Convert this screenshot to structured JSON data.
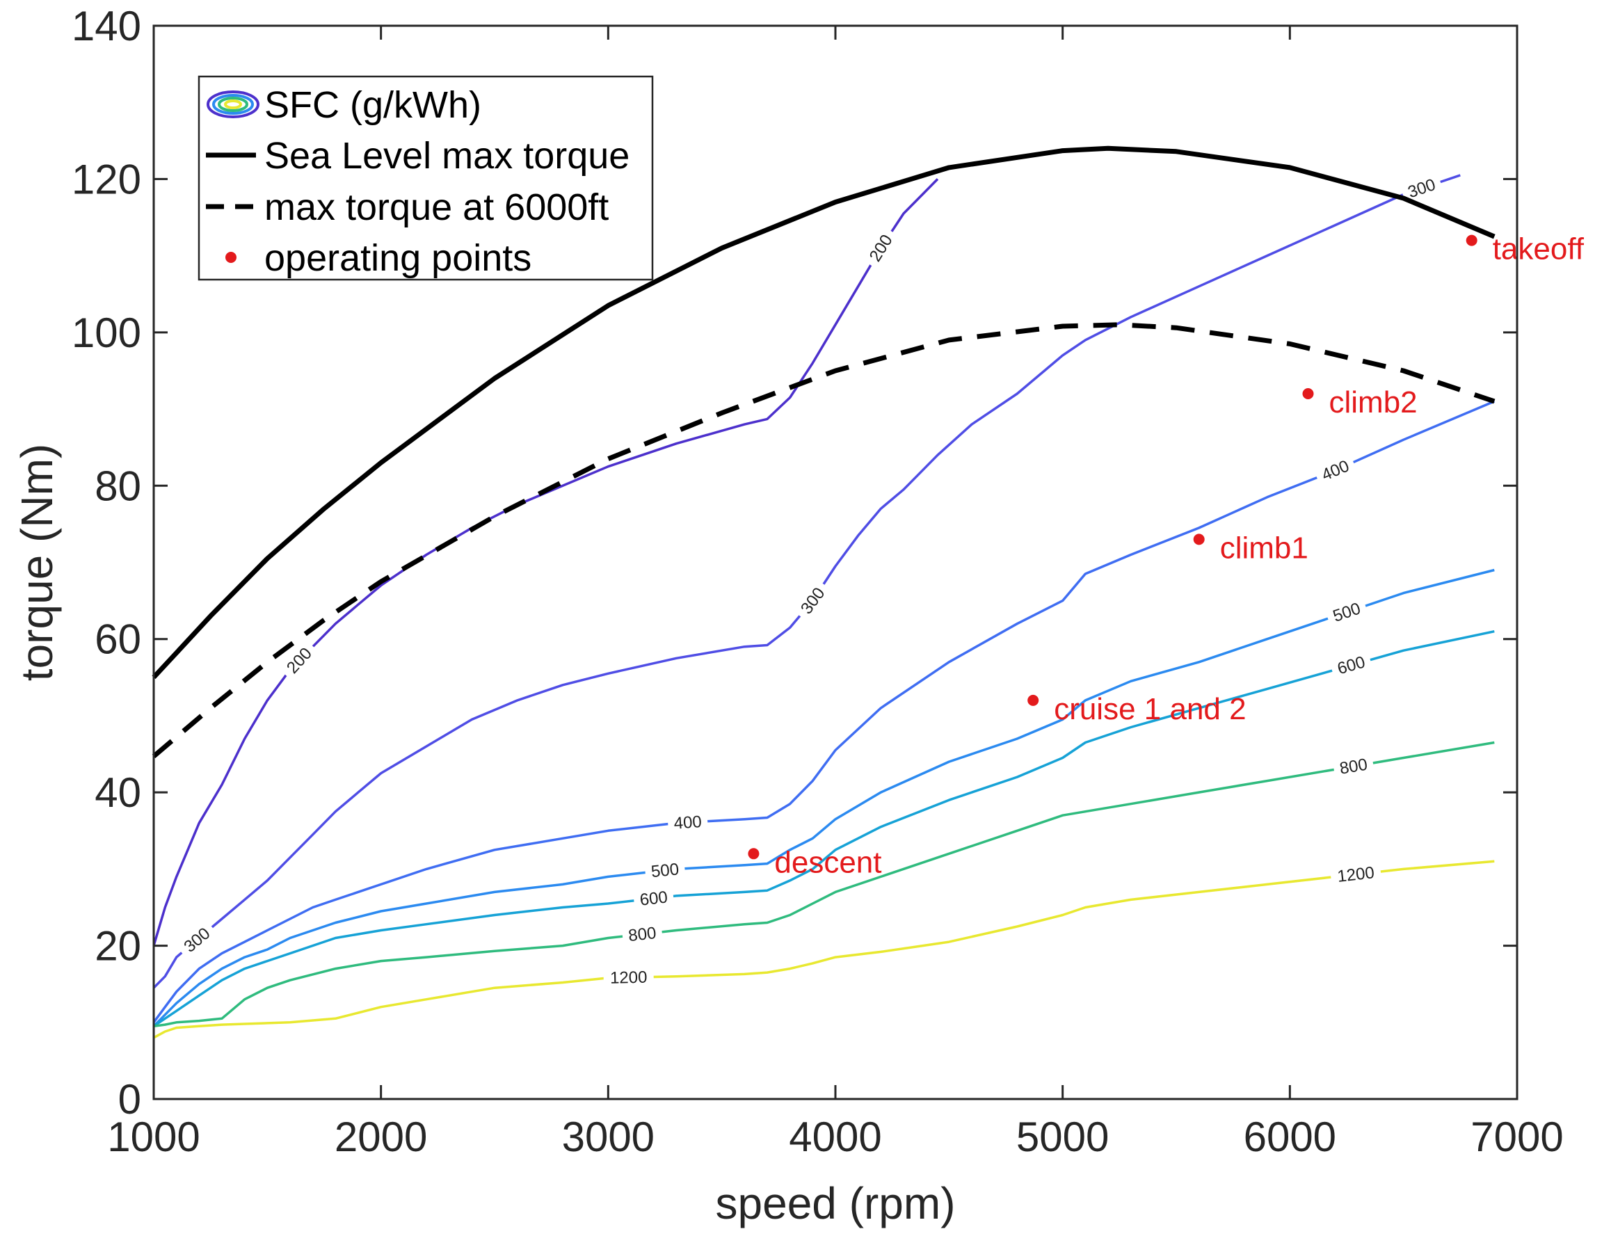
{
  "chart_data": {
    "type": "line",
    "xlabel": "speed (rpm)",
    "ylabel": "torque (Nm)",
    "xlim": [
      1000,
      7000
    ],
    "ylim": [
      0,
      140
    ],
    "xticks": [
      1000,
      2000,
      3000,
      4000,
      5000,
      6000,
      7000
    ],
    "yticks": [
      0,
      20,
      40,
      60,
      80,
      100,
      120,
      140
    ],
    "grid": false,
    "legend": {
      "placement": "top-left",
      "entries": [
        {
          "label": "SFC (g/kWh)",
          "kind": "contour"
        },
        {
          "label": "Sea Level max torque",
          "kind": "solid"
        },
        {
          "label": "max torque at 6000ft",
          "kind": "dashed"
        },
        {
          "label": "operating points",
          "kind": "point"
        }
      ]
    },
    "series": [
      {
        "name": "Sea Level max torque",
        "style": "solid",
        "color": "#000000",
        "x": [
          1000,
          1250,
          1500,
          1750,
          2000,
          2500,
          3000,
          3500,
          4000,
          4500,
          5000,
          5200,
          5500,
          6000,
          6500,
          6900
        ],
        "y": [
          55,
          63,
          70.5,
          77,
          83,
          94,
          103.5,
          111,
          117,
          121.5,
          123.7,
          124,
          123.6,
          121.5,
          117.5,
          112.5
        ]
      },
      {
        "name": "max torque at 6000ft",
        "style": "dashed",
        "color": "#000000",
        "x": [
          1000,
          1250,
          1500,
          1750,
          2000,
          2500,
          3000,
          3500,
          4000,
          4500,
          5000,
          5250,
          5500,
          6000,
          6500,
          6900
        ],
        "y": [
          44.7,
          51,
          57,
          62.5,
          67.5,
          76,
          83.5,
          89.5,
          95,
          99,
          100.8,
          101,
          100.6,
          98.5,
          95,
          91
        ]
      }
    ],
    "contours": [
      {
        "level": "200",
        "color": "#4c30cc",
        "x": [
          1000,
          1050,
          1100,
          1200,
          1300,
          1400,
          1500,
          1600,
          1700,
          1800,
          1900,
          2000,
          2200,
          2400,
          2600,
          2800,
          3000,
          3300,
          3600,
          3700,
          3800,
          3900,
          4000,
          4100,
          4200,
          4300,
          4450
        ],
        "y": [
          20,
          25,
          29,
          36,
          41,
          47,
          52,
          56,
          59,
          62,
          64.5,
          67,
          71,
          74.5,
          77.5,
          80,
          82.5,
          85.5,
          88,
          88.7,
          91.5,
          96,
          101,
          106,
          111,
          115.5,
          120
        ],
        "labels": [
          {
            "x": 1640,
            "y": 58.5
          },
          {
            "x": 4200,
            "y": 110.5
          }
        ]
      },
      {
        "level": "300",
        "color": "#4f4de5",
        "x": [
          1000,
          1050,
          1100,
          1200,
          1300,
          1400,
          1500,
          1600,
          1700,
          1800,
          1900,
          2000,
          2200,
          2400,
          2600,
          2800,
          3000,
          3300,
          3600,
          3700,
          3800,
          3900,
          4000,
          4100,
          4200,
          4300,
          4450,
          4600,
          4800,
          5000,
          5100,
          5300,
          5600,
          5900,
          6200,
          6500,
          6750
        ],
        "y": [
          14.5,
          16,
          18.5,
          21,
          23.5,
          26,
          28.5,
          31.5,
          34.5,
          37.5,
          40,
          42.5,
          46,
          49.5,
          52,
          54,
          55.5,
          57.5,
          59,
          59.2,
          61.5,
          65,
          69.5,
          73.5,
          77,
          79.5,
          84,
          88,
          92,
          97,
          99,
          102,
          106,
          110,
          114,
          118,
          120.5
        ],
        "labels": [
          {
            "x": 1190,
            "y": 22
          },
          {
            "x": 3900,
            "y": 65
          },
          {
            "x": 6580,
            "y": 118.5
          }
        ]
      },
      {
        "level": "400",
        "color": "#3f6df2",
        "x": [
          1000,
          1050,
          1100,
          1200,
          1300,
          1400,
          1500,
          1600,
          1700,
          1800,
          2000,
          2200,
          2500,
          2800,
          3000,
          3300,
          3600,
          3700,
          3800,
          3900,
          4000,
          4200,
          4500,
          4800,
          5000,
          5100,
          5300,
          5600,
          5900,
          6200,
          6500,
          6900
        ],
        "y": [
          10,
          12,
          14,
          17,
          19,
          20.5,
          22,
          23.5,
          25,
          26,
          28,
          30,
          32.5,
          34,
          35,
          36,
          36.5,
          36.7,
          38.5,
          41.5,
          45.5,
          51,
          57,
          62,
          65,
          68.5,
          71,
          74.5,
          78.5,
          82,
          86,
          91
        ],
        "labels": [
          {
            "x": 3350,
            "y": 43
          },
          {
            "x": 6200,
            "y": 85
          }
        ]
      },
      {
        "level": "500",
        "color": "#2b8af0",
        "x": [
          1000,
          1050,
          1100,
          1200,
          1300,
          1400,
          1500,
          1600,
          1800,
          2000,
          2200,
          2500,
          2800,
          3000,
          3300,
          3600,
          3700,
          3800,
          3900,
          4000,
          4200,
          4500,
          4800,
          5000,
          5100,
          5300,
          5600,
          5900,
          6200,
          6500,
          6900
        ],
        "y": [
          9.5,
          11,
          12.5,
          15,
          17,
          18.5,
          19.5,
          21,
          23,
          24.5,
          25.5,
          27,
          28,
          29,
          30,
          30.5,
          30.7,
          32.5,
          34,
          36.5,
          40,
          44,
          47,
          49.5,
          52,
          54.5,
          57,
          60,
          63,
          66,
          69
        ],
        "labels": [
          {
            "x": 3250,
            "y": 34
          },
          {
            "x": 6250,
            "y": 68
          }
        ]
      },
      {
        "level": "600",
        "color": "#16a2d6",
        "x": [
          1000,
          1050,
          1100,
          1200,
          1300,
          1400,
          1500,
          1600,
          1800,
          2000,
          2200,
          2500,
          2800,
          3000,
          3300,
          3600,
          3700,
          3800,
          3900,
          4000,
          4200,
          4500,
          4800,
          5000,
          5100,
          5300,
          5600,
          5900,
          6200,
          6500,
          6900
        ],
        "y": [
          9.5,
          10.5,
          11.5,
          13.5,
          15.5,
          17,
          18,
          19,
          21,
          22,
          22.8,
          24,
          25,
          25.5,
          26.5,
          27,
          27.2,
          28.5,
          30,
          32.5,
          35.5,
          39,
          42,
          44.5,
          46.5,
          48.5,
          51,
          53.5,
          56,
          58.5,
          61
        ],
        "labels": [
          {
            "x": 3200,
            "y": 28.6
          },
          {
            "x": 6270,
            "y": 57
          }
        ]
      },
      {
        "level": "800",
        "color": "#2fbb7e",
        "x": [
          1000,
          1050,
          1100,
          1200,
          1300,
          1400,
          1500,
          1600,
          1800,
          2000,
          2200,
          2500,
          2800,
          3000,
          3300,
          3600,
          3700,
          3800,
          3900,
          4000,
          4200,
          4500,
          4800,
          5000,
          5100,
          5300,
          5600,
          5900,
          6200,
          6500,
          6900
        ],
        "y": [
          9.5,
          9.7,
          10,
          10.2,
          10.5,
          13,
          14.5,
          15.5,
          17,
          18,
          18.5,
          19.3,
          20,
          21,
          22,
          22.8,
          23,
          24,
          25.5,
          27,
          29,
          32,
          35,
          37,
          37.5,
          38.5,
          40,
          41.5,
          43,
          44.5,
          46.5
        ],
        "labels": [
          {
            "x": 3150,
            "y": 21.5
          },
          {
            "x": 6280,
            "y": 43.5
          }
        ]
      },
      {
        "level": "1200",
        "color": "#e8e830",
        "x": [
          1000,
          1050,
          1100,
          1200,
          1300,
          1400,
          1500,
          1600,
          1800,
          2000,
          2200,
          2500,
          2800,
          3000,
          3300,
          3600,
          3700,
          3800,
          3900,
          4000,
          4200,
          4500,
          4800,
          5000,
          5100,
          5300,
          5600,
          5900,
          6200,
          6500,
          6900
        ],
        "y": [
          8,
          8.8,
          9.3,
          9.5,
          9.7,
          9.8,
          9.9,
          10,
          10.5,
          12,
          13,
          14.5,
          15.2,
          15.8,
          16,
          16.3,
          16.5,
          17,
          17.7,
          18.5,
          19.2,
          20.5,
          22.5,
          24,
          25,
          26,
          27,
          28,
          29,
          30,
          31
        ],
        "labels": [
          {
            "x": 3090,
            "y": 15.8
          },
          {
            "x": 6290,
            "y": 29.4
          }
        ]
      }
    ],
    "points": [
      {
        "label": "takeoff",
        "x": 6800,
        "y": 112
      },
      {
        "label": "climb2",
        "x": 6080,
        "y": 92
      },
      {
        "label": "climb1",
        "x": 5600,
        "y": 73
      },
      {
        "label": "cruise 1 and 2",
        "x": 4870,
        "y": 52
      },
      {
        "label": "descent",
        "x": 3640,
        "y": 32
      }
    ],
    "point_color": "#e31a1c"
  }
}
